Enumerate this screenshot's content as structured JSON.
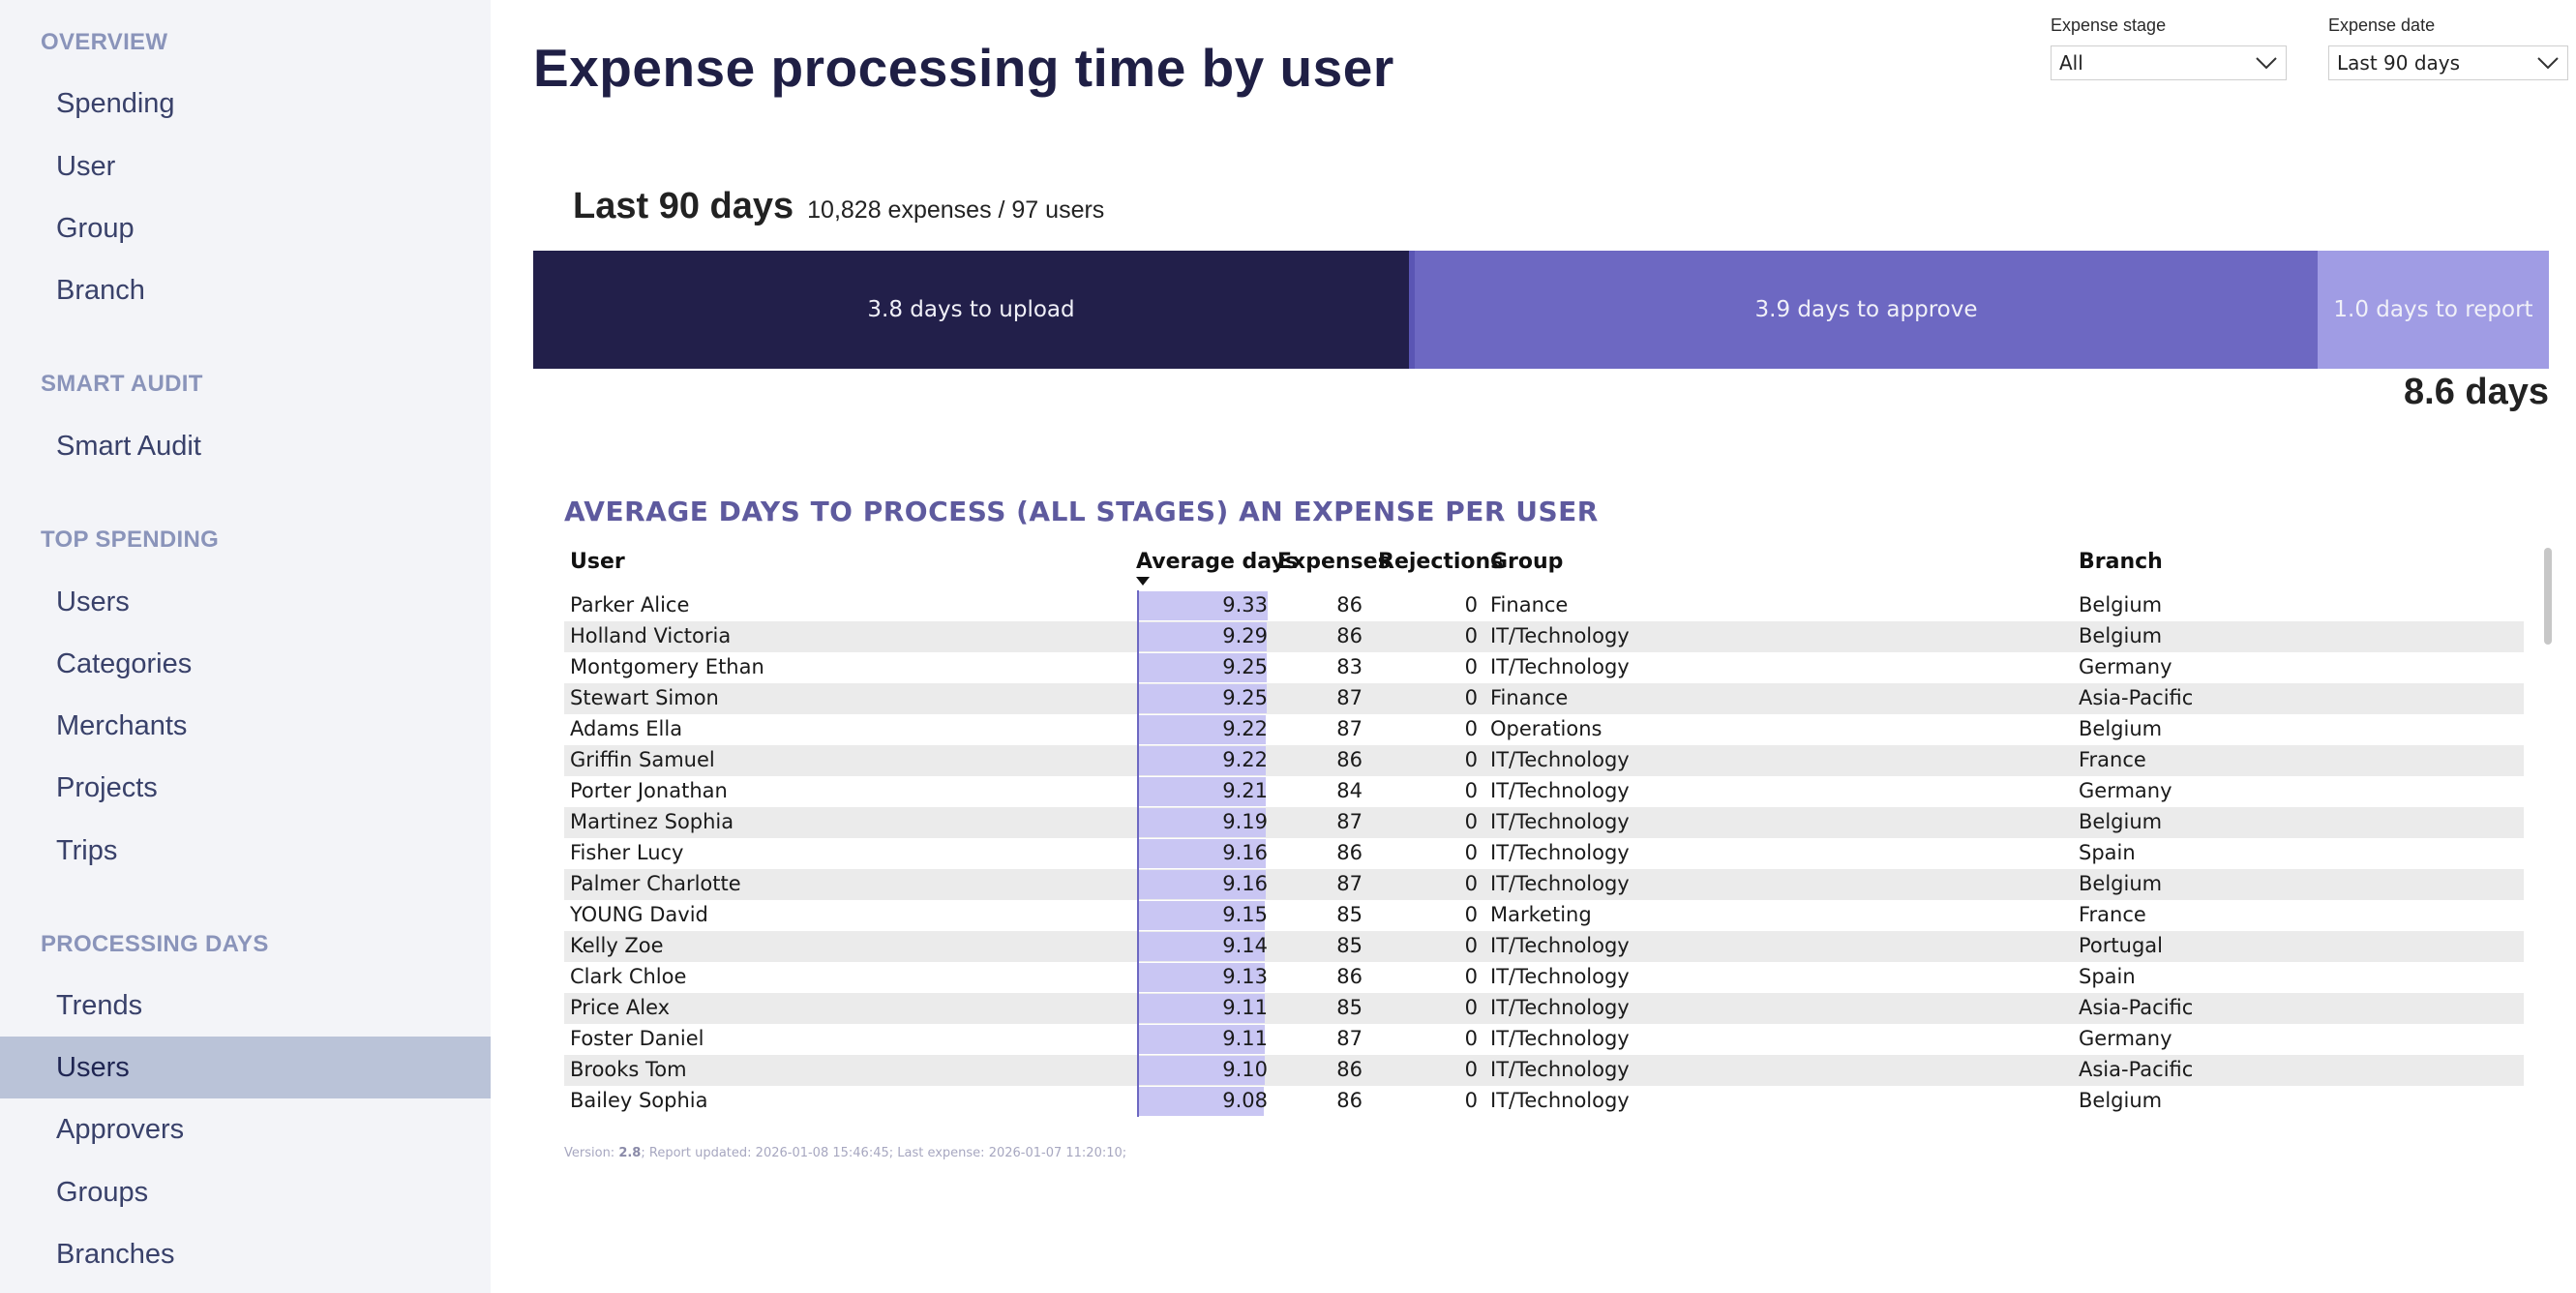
{
  "sidebar": {
    "sections": [
      {
        "title": "OVERVIEW",
        "items": [
          "Spending",
          "User",
          "Group",
          "Branch"
        ]
      },
      {
        "title": "SMART AUDIT",
        "items": [
          "Smart Audit"
        ]
      },
      {
        "title": "TOP SPENDING",
        "items": [
          "Users",
          "Categories",
          "Merchants",
          "Projects",
          "Trips"
        ]
      },
      {
        "title": "PROCESSING DAYS",
        "items": [
          "Trends",
          "Users",
          "Approvers",
          "Groups",
          "Branches"
        ]
      }
    ],
    "active_item": "Users"
  },
  "header": {
    "title": "Expense processing time by user"
  },
  "filters": {
    "stage": {
      "label": "Expense stage",
      "value": "All"
    },
    "date": {
      "label": "Expense date",
      "value": "Last 90 days"
    }
  },
  "summary": {
    "period": "Last 90 days",
    "counts": "10,828 expenses / 97 users",
    "stages": [
      {
        "label": "3.8 days to upload",
        "days": 3.8,
        "color": "#221f4a"
      },
      {
        "label": "3.9 days to approve",
        "days": 3.9,
        "color": "#6d68c2"
      },
      {
        "label": "1.0 days to report",
        "days": 1.0,
        "color": "#a09ce4"
      }
    ],
    "total": "8.6 days"
  },
  "table": {
    "title": "AVERAGE DAYS TO PROCESS (ALL STAGES) AN EXPENSE PER USER",
    "columns": {
      "user": "User",
      "avg": "Average days",
      "expenses": "Expenses",
      "rejections": "Rejections",
      "group": "Group",
      "branch": "Branch"
    },
    "rows": [
      {
        "user": "Parker Alice",
        "avg": "9.33",
        "expenses": "86",
        "rejections": "0",
        "group": "Finance",
        "branch": "Belgium"
      },
      {
        "user": "Holland Victoria",
        "avg": "9.29",
        "expenses": "86",
        "rejections": "0",
        "group": "IT/Technology",
        "branch": "Belgium"
      },
      {
        "user": "Montgomery Ethan",
        "avg": "9.25",
        "expenses": "83",
        "rejections": "0",
        "group": "IT/Technology",
        "branch": "Germany"
      },
      {
        "user": "Stewart Simon",
        "avg": "9.25",
        "expenses": "87",
        "rejections": "0",
        "group": "Finance",
        "branch": "Asia-Pacific"
      },
      {
        "user": "Adams Ella",
        "avg": "9.22",
        "expenses": "87",
        "rejections": "0",
        "group": "Operations",
        "branch": "Belgium"
      },
      {
        "user": "Griffin Samuel",
        "avg": "9.22",
        "expenses": "86",
        "rejections": "0",
        "group": "IT/Technology",
        "branch": "France"
      },
      {
        "user": "Porter Jonathan",
        "avg": "9.21",
        "expenses": "84",
        "rejections": "0",
        "group": "IT/Technology",
        "branch": "Germany"
      },
      {
        "user": "Martinez Sophia",
        "avg": "9.19",
        "expenses": "87",
        "rejections": "0",
        "group": "IT/Technology",
        "branch": "Belgium"
      },
      {
        "user": "Fisher Lucy",
        "avg": "9.16",
        "expenses": "86",
        "rejections": "0",
        "group": "IT/Technology",
        "branch": "Spain"
      },
      {
        "user": "Palmer Charlotte",
        "avg": "9.16",
        "expenses": "87",
        "rejections": "0",
        "group": "IT/Technology",
        "branch": "Belgium"
      },
      {
        "user": "YOUNG David",
        "avg": "9.15",
        "expenses": "85",
        "rejections": "0",
        "group": "Marketing",
        "branch": "France"
      },
      {
        "user": "Kelly Zoe",
        "avg": "9.14",
        "expenses": "85",
        "rejections": "0",
        "group": "IT/Technology",
        "branch": "Portugal"
      },
      {
        "user": "Clark Chloe",
        "avg": "9.13",
        "expenses": "86",
        "rejections": "0",
        "group": "IT/Technology",
        "branch": "Spain"
      },
      {
        "user": "Price Alex",
        "avg": "9.11",
        "expenses": "85",
        "rejections": "0",
        "group": "IT/Technology",
        "branch": "Asia-Pacific"
      },
      {
        "user": "Foster Daniel",
        "avg": "9.11",
        "expenses": "87",
        "rejections": "0",
        "group": "IT/Technology",
        "branch": "Germany"
      },
      {
        "user": "Brooks Tom",
        "avg": "9.10",
        "expenses": "86",
        "rejections": "0",
        "group": "IT/Technology",
        "branch": "Asia-Pacific"
      },
      {
        "user": "Bailey Sophia",
        "avg": "9.08",
        "expenses": "86",
        "rejections": "0",
        "group": "IT/Technology",
        "branch": "Belgium"
      }
    ]
  },
  "footer": {
    "version_label": "Version: ",
    "version": "2.8",
    "rest": "; Report updated: 2026-01-08 15:46:45; Last expense: 2026-01-07 11:20:10;"
  }
}
